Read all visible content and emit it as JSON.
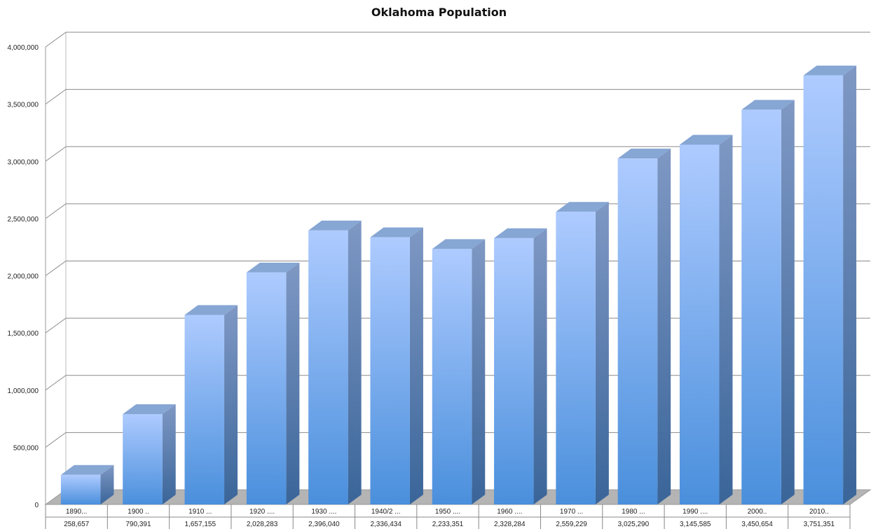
{
  "chart_data": {
    "type": "bar",
    "title": "Oklahoma Population",
    "xlabel": "",
    "ylabel": "",
    "ylim": [
      0,
      4000000
    ],
    "yticks": [
      "0",
      "500,000",
      "1,000,000",
      "1,500,000",
      "2,000,000",
      "2,500,000",
      "3,000,000",
      "3,500,000",
      "4,000,000"
    ],
    "ytick_values": [
      0,
      500000,
      1000000,
      1500000,
      2000000,
      2500000,
      3000000,
      3500000,
      4000000
    ],
    "grid": true,
    "style": "3d-column",
    "categories": [
      "1890...",
      "1900 ..",
      "1910 ...",
      "1920 ....",
      "1930 ....",
      "1940/2 ...",
      "1950 ....",
      "1960 ....",
      "1970 ...",
      "1980 ...",
      "1990 ....",
      "2000..",
      "2010.."
    ],
    "values": [
      258657,
      790391,
      1657155,
      2028283,
      2396040,
      2336434,
      2233351,
      2328284,
      2559229,
      3025290,
      3145585,
      3450654,
      3751351
    ],
    "value_labels": [
      "258,657",
      "790,391",
      "1,657,155",
      "2,028,283",
      "2,396,040",
      "2,336,434",
      "2,233,351",
      "2,328,284",
      "2,559,229",
      "3,025,290",
      "3,145,585",
      "3,450,654",
      "3,751,351"
    ],
    "colors": {
      "bar_front_top": "#aecbff",
      "bar_front_bottom": "#4a8fdc",
      "bar_top": "#86a6d4",
      "bar_side_top": "#7f98c4",
      "bar_side_bottom": "#3a6599",
      "floor": "#b4b4b4",
      "grid": "#8a8a8a"
    }
  }
}
